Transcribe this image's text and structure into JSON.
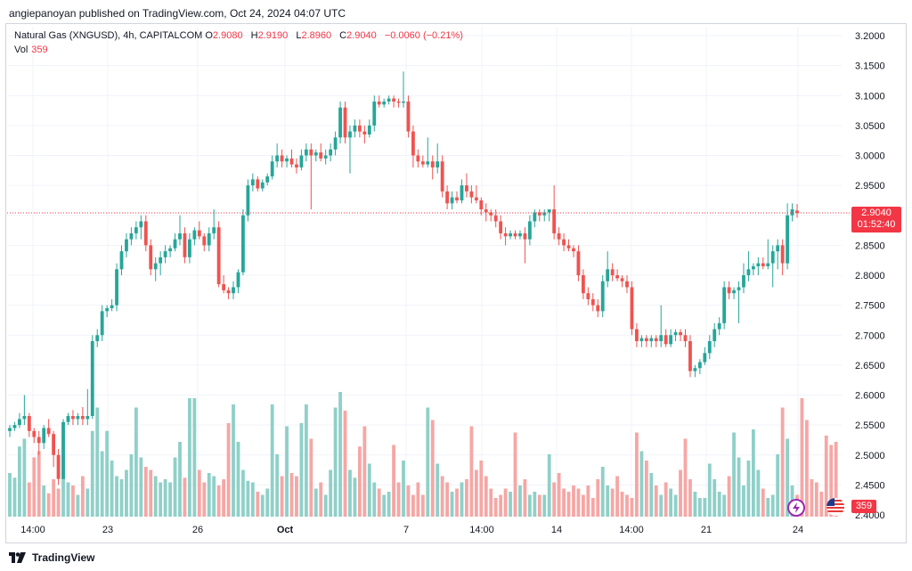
{
  "header": {
    "publisher": "angiepanoyan published on TradingView.com, Oct 24, 2024 04:07 UTC"
  },
  "legend": {
    "symbol": "Natural Gas (XNGUSD), 4h, CAPITALCOM",
    "o_label": "O",
    "o": "2.9080",
    "h_label": "H",
    "h": "2.9190",
    "l_label": "L",
    "l": "2.8960",
    "c_label": "C",
    "c": "2.9040",
    "change": "−0.0060 (−0.21%)",
    "vol_label": "Vol",
    "vol": "359"
  },
  "price_badge": {
    "price": "2.9040",
    "countdown": "01:52:40"
  },
  "vol_badge": "359",
  "footer": {
    "brand": "TradingView"
  },
  "colors": {
    "up": "#26a69a",
    "down": "#ef5350",
    "up_vol": "#8fd0c8",
    "down_vol": "#f5a7a5",
    "last_price": "#f23645"
  },
  "chart_data": {
    "type": "candlestick",
    "y_ticks": [
      "3.2000",
      "3.1500",
      "3.1000",
      "3.0500",
      "3.0000",
      "2.9500",
      "2.9000",
      "2.8500",
      "2.8000",
      "2.7500",
      "2.7000",
      "2.6500",
      "2.6000",
      "2.5500",
      "2.5000",
      "2.4500",
      "2.4000"
    ],
    "ylim": [
      2.4,
      3.2
    ],
    "x_ticks": [
      "14:00",
      "23",
      "26",
      "Oct",
      "7",
      "14:00",
      "14",
      "14:00",
      "21",
      "24"
    ],
    "last_price": 2.904,
    "candles": [
      [
        2.54,
        2.55,
        2.53,
        2.545
      ],
      [
        2.545,
        2.555,
        2.54,
        2.55
      ],
      [
        2.55,
        2.57,
        2.545,
        2.56
      ],
      [
        2.56,
        2.6,
        2.55,
        2.565
      ],
      [
        2.565,
        2.57,
        2.53,
        2.54
      ],
      [
        2.54,
        2.545,
        2.52,
        2.53
      ],
      [
        2.53,
        2.54,
        2.5,
        2.52
      ],
      [
        2.52,
        2.55,
        2.51,
        2.545
      ],
      [
        2.545,
        2.56,
        2.53,
        2.535
      ],
      [
        2.535,
        2.54,
        2.48,
        2.5
      ],
      [
        2.5,
        2.51,
        2.45,
        2.46
      ],
      [
        2.46,
        2.56,
        2.46,
        2.555
      ],
      [
        2.555,
        2.57,
        2.55,
        2.565
      ],
      [
        2.565,
        2.575,
        2.55,
        2.56
      ],
      [
        2.56,
        2.57,
        2.55,
        2.565
      ],
      [
        2.565,
        2.58,
        2.55,
        2.56
      ],
      [
        2.56,
        2.61,
        2.55,
        2.565
      ],
      [
        2.565,
        2.7,
        2.56,
        2.69
      ],
      [
        2.69,
        2.71,
        2.68,
        2.7
      ],
      [
        2.7,
        2.75,
        2.69,
        2.74
      ],
      [
        2.74,
        2.75,
        2.73,
        2.745
      ],
      [
        2.745,
        2.76,
        2.74,
        2.75
      ],
      [
        2.75,
        2.82,
        2.74,
        2.81
      ],
      [
        2.81,
        2.85,
        2.8,
        2.84
      ],
      [
        2.84,
        2.87,
        2.83,
        2.86
      ],
      [
        2.86,
        2.88,
        2.85,
        2.87
      ],
      [
        2.87,
        2.89,
        2.86,
        2.88
      ],
      [
        2.88,
        2.9,
        2.86,
        2.89
      ],
      [
        2.89,
        2.9,
        2.84,
        2.85
      ],
      [
        2.85,
        2.86,
        2.8,
        2.81
      ],
      [
        2.81,
        2.83,
        2.79,
        2.82
      ],
      [
        2.82,
        2.84,
        2.8,
        2.83
      ],
      [
        2.83,
        2.85,
        2.82,
        2.84
      ],
      [
        2.84,
        2.85,
        2.83,
        2.845
      ],
      [
        2.845,
        2.87,
        2.84,
        2.86
      ],
      [
        2.86,
        2.9,
        2.85,
        2.87
      ],
      [
        2.87,
        2.88,
        2.82,
        2.83
      ],
      [
        2.83,
        2.87,
        2.82,
        2.86
      ],
      [
        2.86,
        2.88,
        2.85,
        2.875
      ],
      [
        2.875,
        2.89,
        2.86,
        2.865
      ],
      [
        2.865,
        2.87,
        2.84,
        2.85
      ],
      [
        2.85,
        2.88,
        2.84,
        2.87
      ],
      [
        2.87,
        2.91,
        2.86,
        2.88
      ],
      [
        2.88,
        2.89,
        2.78,
        2.785
      ],
      [
        2.785,
        2.8,
        2.77,
        2.775
      ],
      [
        2.775,
        2.78,
        2.76,
        2.77
      ],
      [
        2.77,
        2.79,
        2.76,
        2.78
      ],
      [
        2.78,
        2.81,
        2.77,
        2.805
      ],
      [
        2.805,
        2.91,
        2.8,
        2.9
      ],
      [
        2.9,
        2.96,
        2.89,
        2.95
      ],
      [
        2.95,
        2.97,
        2.94,
        2.96
      ],
      [
        2.96,
        2.965,
        2.94,
        2.945
      ],
      [
        2.945,
        2.96,
        2.94,
        2.955
      ],
      [
        2.955,
        2.97,
        2.95,
        2.965
      ],
      [
        2.965,
        3.0,
        2.96,
        2.99
      ],
      [
        2.99,
        3.02,
        2.98,
        3.0
      ],
      [
        3.0,
        3.01,
        2.98,
        2.99
      ],
      [
        2.99,
        3.0,
        2.98,
        2.995
      ],
      [
        2.995,
        3.01,
        2.98,
        2.985
      ],
      [
        2.985,
        2.995,
        2.97,
        2.98
      ],
      [
        2.98,
        3.01,
        2.975,
        3.0
      ],
      [
        3.0,
        3.02,
        2.99,
        3.01
      ],
      [
        3.01,
        3.02,
        2.91,
        3.0
      ],
      [
        3.0,
        3.01,
        2.99,
        3.005
      ],
      [
        3.005,
        3.02,
        2.99,
        2.995
      ],
      [
        2.995,
        3.01,
        2.985,
        3.0
      ],
      [
        3.0,
        3.02,
        2.99,
        3.01
      ],
      [
        3.01,
        3.04,
        3.0,
        3.03
      ],
      [
        3.03,
        3.09,
        3.02,
        3.08
      ],
      [
        3.08,
        3.09,
        3.02,
        3.03
      ],
      [
        3.03,
        3.05,
        2.97,
        3.04
      ],
      [
        3.04,
        3.06,
        3.03,
        3.05
      ],
      [
        3.05,
        3.06,
        3.03,
        3.04
      ],
      [
        3.04,
        3.05,
        3.02,
        3.035
      ],
      [
        3.035,
        3.06,
        3.03,
        3.05
      ],
      [
        3.05,
        3.1,
        3.04,
        3.09
      ],
      [
        3.09,
        3.1,
        3.08,
        3.085
      ],
      [
        3.085,
        3.095,
        3.08,
        3.09
      ],
      [
        3.09,
        3.1,
        3.085,
        3.095
      ],
      [
        3.095,
        3.1,
        3.08,
        3.09
      ],
      [
        3.09,
        3.095,
        3.08,
        3.088
      ],
      [
        3.088,
        3.14,
        3.08,
        3.09
      ],
      [
        3.09,
        3.1,
        3.03,
        3.04
      ],
      [
        3.04,
        3.05,
        2.98,
        3.0
      ],
      [
        3.0,
        3.01,
        2.98,
        2.99
      ],
      [
        2.99,
        3.0,
        2.98,
        2.985
      ],
      [
        2.985,
        3.03,
        2.98,
        2.99
      ],
      [
        2.99,
        3.0,
        2.96,
        2.98
      ],
      [
        2.98,
        3.02,
        2.97,
        2.99
      ],
      [
        2.99,
        3.0,
        2.93,
        2.94
      ],
      [
        2.94,
        2.95,
        2.91,
        2.92
      ],
      [
        2.92,
        2.94,
        2.91,
        2.93
      ],
      [
        2.93,
        2.94,
        2.92,
        2.925
      ],
      [
        2.925,
        2.96,
        2.92,
        2.95
      ],
      [
        2.95,
        2.97,
        2.93,
        2.94
      ],
      [
        2.94,
        2.95,
        2.92,
        2.93
      ],
      [
        2.93,
        2.95,
        2.92,
        2.925
      ],
      [
        2.925,
        2.93,
        2.9,
        2.91
      ],
      [
        2.91,
        2.92,
        2.89,
        2.905
      ],
      [
        2.905,
        2.91,
        2.89,
        2.9
      ],
      [
        2.9,
        2.91,
        2.88,
        2.89
      ],
      [
        2.89,
        2.9,
        2.86,
        2.87
      ],
      [
        2.87,
        2.88,
        2.85,
        2.865
      ],
      [
        2.865,
        2.875,
        2.86,
        2.87
      ],
      [
        2.87,
        2.875,
        2.86,
        2.865
      ],
      [
        2.865,
        2.875,
        2.86,
        2.87
      ],
      [
        2.87,
        2.88,
        2.82,
        2.86
      ],
      [
        2.86,
        2.9,
        2.85,
        2.89
      ],
      [
        2.89,
        2.91,
        2.88,
        2.905
      ],
      [
        2.905,
        2.91,
        2.89,
        2.9
      ],
      [
        2.9,
        2.91,
        2.89,
        2.905
      ],
      [
        2.905,
        2.91,
        2.89,
        2.91
      ],
      [
        2.91,
        2.95,
        2.86,
        2.87
      ],
      [
        2.87,
        2.88,
        2.85,
        2.86
      ],
      [
        2.86,
        2.87,
        2.84,
        2.85
      ],
      [
        2.85,
        2.86,
        2.84,
        2.845
      ],
      [
        2.845,
        2.85,
        2.83,
        2.84
      ],
      [
        2.84,
        2.85,
        2.79,
        2.8
      ],
      [
        2.8,
        2.81,
        2.76,
        2.77
      ],
      [
        2.77,
        2.78,
        2.75,
        2.76
      ],
      [
        2.76,
        2.77,
        2.74,
        2.75
      ],
      [
        2.75,
        2.76,
        2.73,
        2.74
      ],
      [
        2.74,
        2.8,
        2.73,
        2.79
      ],
      [
        2.79,
        2.84,
        2.78,
        2.81
      ],
      [
        2.81,
        2.82,
        2.79,
        2.8
      ],
      [
        2.8,
        2.81,
        2.79,
        2.795
      ],
      [
        2.795,
        2.8,
        2.78,
        2.79
      ],
      [
        2.79,
        2.8,
        2.77,
        2.78
      ],
      [
        2.78,
        2.79,
        2.7,
        2.71
      ],
      [
        2.71,
        2.72,
        2.68,
        2.69
      ],
      [
        2.69,
        2.7,
        2.68,
        2.695
      ],
      [
        2.695,
        2.7,
        2.68,
        2.69
      ],
      [
        2.69,
        2.7,
        2.68,
        2.695
      ],
      [
        2.695,
        2.7,
        2.68,
        2.69
      ],
      [
        2.69,
        2.75,
        2.68,
        2.7
      ],
      [
        2.7,
        2.71,
        2.68,
        2.685
      ],
      [
        2.685,
        2.71,
        2.68,
        2.7
      ],
      [
        2.7,
        2.71,
        2.69,
        2.705
      ],
      [
        2.705,
        2.71,
        2.69,
        2.7
      ],
      [
        2.7,
        2.71,
        2.68,
        2.69
      ],
      [
        2.69,
        2.7,
        2.63,
        2.64
      ],
      [
        2.64,
        2.65,
        2.63,
        2.645
      ],
      [
        2.645,
        2.66,
        2.635,
        2.655
      ],
      [
        2.655,
        2.68,
        2.65,
        2.67
      ],
      [
        2.67,
        2.7,
        2.66,
        2.69
      ],
      [
        2.69,
        2.72,
        2.68,
        2.71
      ],
      [
        2.71,
        2.73,
        2.7,
        2.72
      ],
      [
        2.72,
        2.79,
        2.71,
        2.78
      ],
      [
        2.78,
        2.79,
        2.76,
        2.77
      ],
      [
        2.77,
        2.78,
        2.76,
        2.775
      ],
      [
        2.775,
        2.79,
        2.72,
        2.78
      ],
      [
        2.78,
        2.82,
        2.77,
        2.8
      ],
      [
        2.8,
        2.84,
        2.79,
        2.81
      ],
      [
        2.81,
        2.82,
        2.8,
        2.815
      ],
      [
        2.815,
        2.83,
        2.8,
        2.82
      ],
      [
        2.82,
        2.83,
        2.81,
        2.815
      ],
      [
        2.815,
        2.86,
        2.81,
        2.82
      ],
      [
        2.82,
        2.85,
        2.78,
        2.84
      ],
      [
        2.84,
        2.86,
        2.81,
        2.85
      ],
      [
        2.85,
        2.86,
        2.8,
        2.82
      ],
      [
        2.82,
        2.92,
        2.81,
        2.9
      ],
      [
        2.9,
        2.92,
        2.89,
        2.91
      ],
      [
        2.908,
        2.919,
        2.896,
        2.904
      ]
    ],
    "volumes": [
      28,
      25,
      45,
      50,
      22,
      38,
      42,
      20,
      15,
      24,
      18,
      40,
      22,
      20,
      14,
      26,
      18,
      55,
      70,
      42,
      55,
      36,
      26,
      24,
      30,
      40,
      70,
      38,
      32,
      30,
      26,
      22,
      24,
      22,
      38,
      48,
      25,
      76,
      76,
      30,
      22,
      28,
      26,
      20,
      24,
      60,
      72,
      48,
      30,
      23,
      22,
      16,
      14,
      18,
      72,
      40,
      26,
      58,
      28,
      26,
      60,
      72,
      50,
      18,
      22,
      14,
      30,
      70,
      80,
      68,
      30,
      25,
      45,
      58,
      34,
      22,
      18,
      14,
      16,
      46,
      22,
      36,
      20,
      14,
      22,
      14,
      70,
      62,
      34,
      26,
      22,
      16,
      18,
      22,
      24,
      58,
      30,
      36,
      26,
      18,
      12,
      14,
      18,
      16,
      54,
      20,
      24,
      14,
      16,
      14,
      14,
      40,
      22,
      28,
      18,
      16,
      20,
      18,
      14,
      20,
      12,
      24,
      32,
      20,
      18,
      26,
      16,
      14,
      12,
      54,
      42,
      36,
      28,
      20,
      14,
      22,
      18,
      14,
      30,
      50,
      24,
      16,
      12,
      12,
      34,
      24,
      16,
      14,
      26,
      54,
      38,
      20,
      36,
      56,
      30,
      18,
      12,
      14,
      40,
      70,
      50,
      20,
      14,
      76,
      62,
      24,
      22,
      16,
      52,
      46,
      48
    ]
  }
}
